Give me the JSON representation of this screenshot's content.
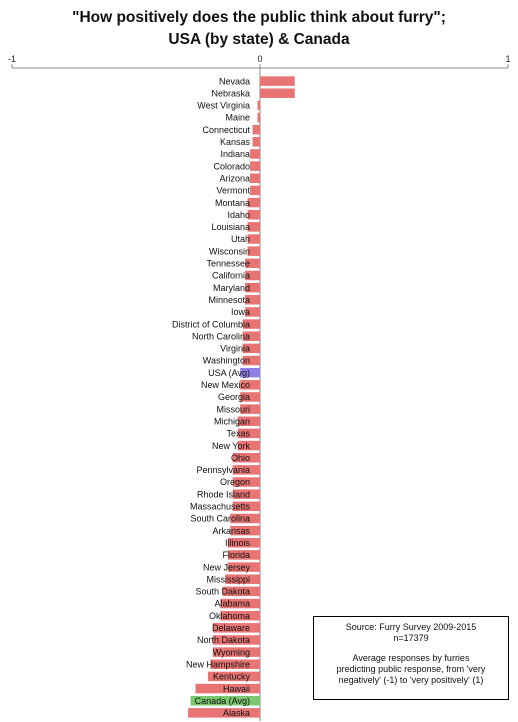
{
  "chart_data": {
    "type": "bar",
    "orientation": "horizontal",
    "title": "\"How positively does the public think about furry\";",
    "subtitle": "USA (by state) & Canada",
    "xlim": [
      -1,
      1
    ],
    "xticks": [
      "-1",
      "0",
      "1"
    ],
    "grid": false,
    "categories": [
      "Nevada",
      "Nebraska",
      "West Virginia",
      "Maine",
      "Connecticut",
      "Kansas",
      "Indiana",
      "Colorado",
      "Arizona",
      "Vermont",
      "Montana",
      "Idaho",
      "Louisiana",
      "Utah",
      "Wisconsin",
      "Tennessee",
      "California",
      "Maryland",
      "Minnesota",
      "Iowa",
      "District of Columbia",
      "North Carolina",
      "Virginia",
      "Washington",
      "USA (Avg)",
      "New Mexico",
      "Georgia",
      "Missouri",
      "Michigan",
      "Texas",
      "New York",
      "Ohio",
      "Pennsylvania",
      "Oregon",
      "Rhode Island",
      "Massachusetts",
      "South Carolina",
      "Arkansas",
      "Illinois",
      "Florida",
      "New Jersey",
      "Mississippi",
      "South Dakota",
      "Alabama",
      "Oklahoma",
      "Delaware",
      "North Dakota",
      "Wyoming",
      "New Hampshire",
      "Kentucky",
      "Hawaii",
      "Canada (Avg)",
      "Alaska"
    ],
    "values": [
      0.14,
      0.14,
      -0.01,
      -0.01,
      -0.03,
      -0.03,
      -0.04,
      -0.04,
      -0.04,
      -0.04,
      -0.05,
      -0.05,
      -0.05,
      -0.05,
      -0.05,
      -0.06,
      -0.06,
      -0.06,
      -0.06,
      -0.06,
      -0.07,
      -0.07,
      -0.07,
      -0.07,
      -0.08,
      -0.08,
      -0.08,
      -0.08,
      -0.09,
      -0.09,
      -0.09,
      -0.11,
      -0.11,
      -0.11,
      -0.11,
      -0.11,
      -0.12,
      -0.12,
      -0.13,
      -0.13,
      -0.13,
      -0.14,
      -0.15,
      -0.16,
      -0.16,
      -0.19,
      -0.19,
      -0.19,
      -0.2,
      -0.21,
      -0.26,
      -0.28,
      -0.29
    ],
    "colors": {
      "default": "#e87474",
      "usa_avg": "#8f80e8",
      "canada_avg": "#79c76f"
    }
  },
  "source_box": {
    "line1": "Source: Furry Survey 2009-2015",
    "line2": "n=17379",
    "line3": "Average responses by furries",
    "line4": "predicting public response, from 'very",
    "line5": "negatively' (-1) to 'very positively' (1)"
  }
}
